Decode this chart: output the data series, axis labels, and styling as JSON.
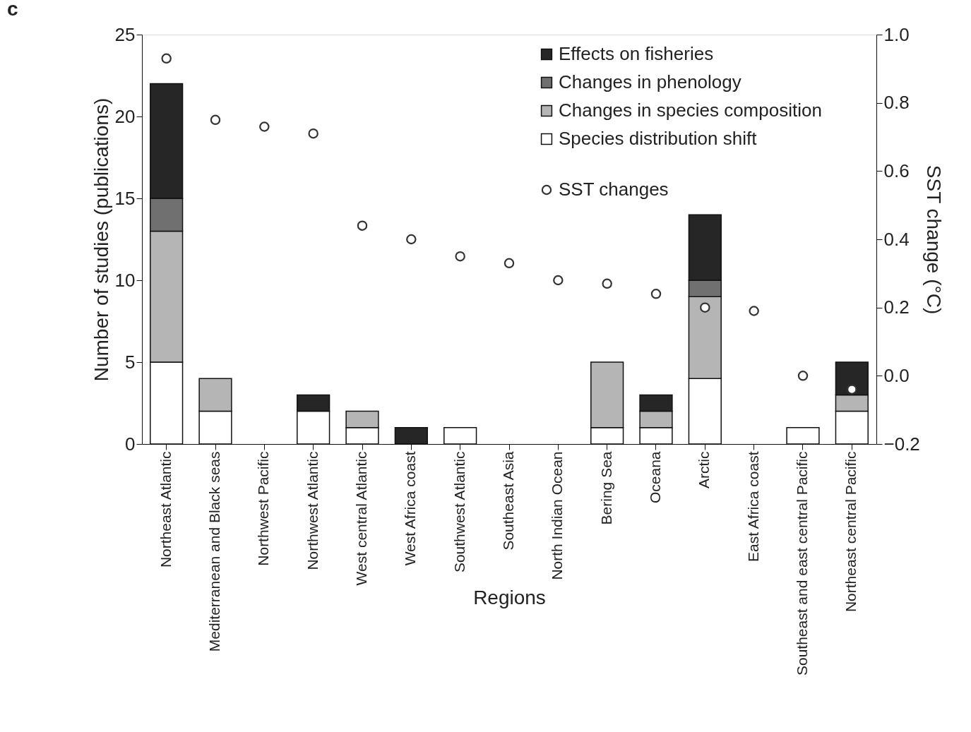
{
  "chart_data": {
    "type": "bar",
    "title": "c",
    "xlabel": "Regions",
    "ylabel": "Number of studies (publications)",
    "y2label": "SST change (°C)",
    "categories": [
      "Northeast Atlantic",
      "Mediterranean and Black seas",
      "Northwest Pacific",
      "Northwest Atlantic",
      "West central Atlantic",
      "West Africa coast",
      "Southwest Atlantic",
      "Southeast Asia",
      "North Indian Ocean",
      "Bering Sea",
      "Oceana",
      "Arctic",
      "East Africa coast",
      "Southeast and east central Pacific",
      "Northeast central Pacific"
    ],
    "stacked": true,
    "series": [
      {
        "name": "Species distribution shift",
        "color": "#ffffff",
        "values": [
          5,
          2,
          0,
          2,
          1,
          0,
          1,
          0,
          0,
          1,
          1,
          4,
          0,
          1,
          2
        ]
      },
      {
        "name": "Changes in species composition",
        "color": "#b5b5b5",
        "values": [
          8,
          2,
          0,
          0,
          1,
          0,
          0,
          0,
          0,
          4,
          1,
          5,
          0,
          0,
          1
        ]
      },
      {
        "name": "Changes in phenology",
        "color": "#707070",
        "values": [
          2,
          0,
          0,
          0,
          0,
          0,
          0,
          0,
          0,
          0,
          0,
          1,
          0,
          0,
          0
        ]
      },
      {
        "name": "Effects on fisheries",
        "color": "#262626",
        "values": [
          7,
          0,
          0,
          1,
          0,
          1,
          0,
          0,
          0,
          0,
          1,
          4,
          0,
          0,
          2
        ]
      },
      {
        "name": "SST changes",
        "type": "scatter",
        "axis": "y2",
        "color": "#333333",
        "values": [
          0.93,
          0.75,
          0.73,
          0.71,
          0.44,
          0.4,
          0.35,
          0.33,
          0.28,
          0.27,
          0.24,
          0.2,
          0.19,
          0.0,
          -0.04
        ]
      }
    ],
    "ylim": [
      0,
      25
    ],
    "yticks": [
      0,
      5,
      10,
      15,
      20,
      25
    ],
    "y2lim": [
      -0.2,
      1.0
    ],
    "y2ticks": [
      {
        "value": -0.2,
        "label": "−0.2"
      },
      {
        "value": 0,
        "label": "0.0"
      },
      {
        "value": 0.2,
        "label": "0.2"
      },
      {
        "value": 0.4,
        "label": "0.4"
      },
      {
        "value": 0.6,
        "label": "0.6"
      },
      {
        "value": 0.8,
        "label": "0.8"
      },
      {
        "value": 1.0,
        "label": "1.0"
      }
    ],
    "grid": false,
    "legend": "top right",
    "marker": "circle"
  }
}
